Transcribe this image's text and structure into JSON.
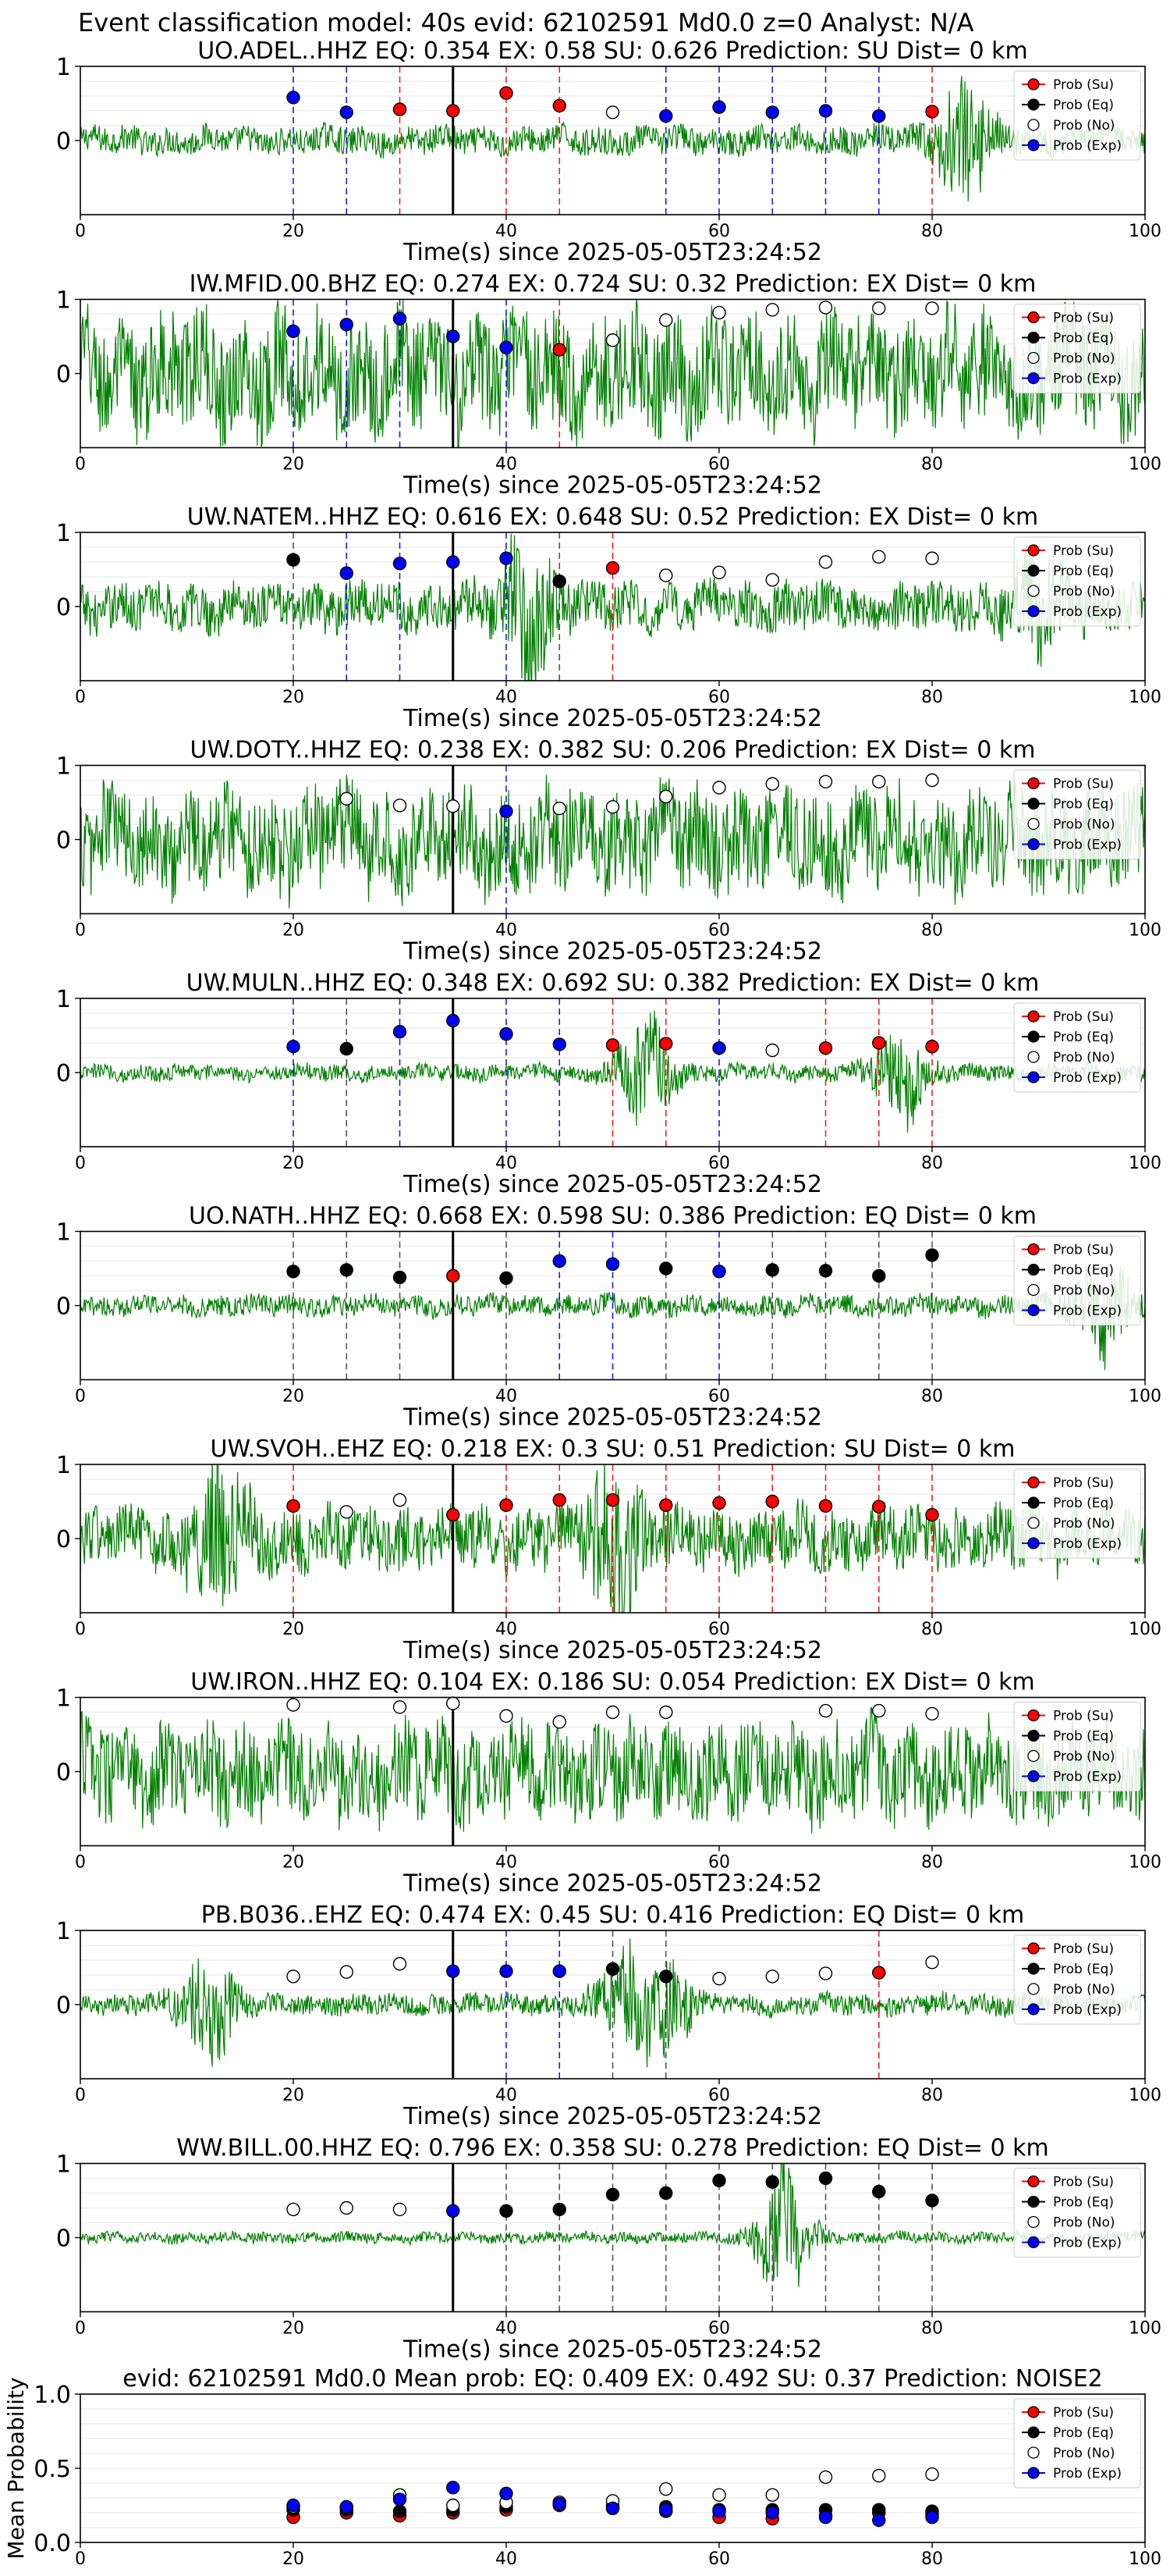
{
  "figure": {
    "suptitle": "Event classification model: 40s evid: 62102591 Md0.0 z=0 Analyst: N/A"
  },
  "legend_labels": [
    "Prob (Su)",
    "Prob (Eq)",
    "Prob (No)",
    "Prob (Exp)"
  ],
  "colors": {
    "su": "#ff0000",
    "eq": "#000000",
    "no": "#ffffff",
    "exp": "#0000ff",
    "waveform": "#008000"
  },
  "chart_data": [
    {
      "type": "scatter",
      "panel": 0,
      "title": "UO.ADEL..HHZ   EQ: 0.354  EX: 0.58  SU: 0.626   Prediction: SU    Dist= 0 km",
      "xlabel": "Time(s) since 2025-05-05T23:24:52",
      "xlim": [
        0,
        100
      ],
      "ylim": [
        -1,
        1
      ],
      "xticks": [
        0,
        20,
        40,
        60,
        80,
        100
      ],
      "yticks": [
        0,
        1
      ],
      "origin_time": 35,
      "amplitude": 0.2,
      "bursts": [
        [
          83,
          0.8
        ]
      ],
      "points": [
        {
          "x": 20,
          "y": 0.58,
          "cls": "exp"
        },
        {
          "x": 25,
          "y": 0.38,
          "cls": "exp"
        },
        {
          "x": 30,
          "y": 0.42,
          "cls": "su"
        },
        {
          "x": 35,
          "y": 0.4,
          "cls": "su"
        },
        {
          "x": 40,
          "y": 0.64,
          "cls": "su"
        },
        {
          "x": 45,
          "y": 0.47,
          "cls": "su"
        },
        {
          "x": 50,
          "y": 0.38,
          "cls": "no"
        },
        {
          "x": 55,
          "y": 0.33,
          "cls": "exp"
        },
        {
          "x": 60,
          "y": 0.45,
          "cls": "exp"
        },
        {
          "x": 65,
          "y": 0.38,
          "cls": "exp"
        },
        {
          "x": 70,
          "y": 0.4,
          "cls": "exp"
        },
        {
          "x": 75,
          "y": 0.33,
          "cls": "exp"
        },
        {
          "x": 80,
          "y": 0.39,
          "cls": "su"
        }
      ]
    },
    {
      "type": "scatter",
      "panel": 1,
      "title": "IW.MFID.00.BHZ   EQ: 0.274  EX: 0.724  SU: 0.32   Prediction: EX    Dist= 0 km",
      "xlabel": "Time(s) since 2025-05-05T23:24:52",
      "xlim": [
        0,
        100
      ],
      "ylim": [
        -1,
        1
      ],
      "xticks": [
        0,
        20,
        40,
        60,
        80,
        100
      ],
      "yticks": [
        0,
        1
      ],
      "origin_time": 35,
      "amplitude": 0.85,
      "bursts": [],
      "points": [
        {
          "x": 20,
          "y": 0.57,
          "cls": "exp"
        },
        {
          "x": 25,
          "y": 0.66,
          "cls": "exp"
        },
        {
          "x": 30,
          "y": 0.74,
          "cls": "exp"
        },
        {
          "x": 35,
          "y": 0.5,
          "cls": "exp"
        },
        {
          "x": 40,
          "y": 0.35,
          "cls": "exp"
        },
        {
          "x": 45,
          "y": 0.32,
          "cls": "su"
        },
        {
          "x": 50,
          "y": 0.45,
          "cls": "no"
        },
        {
          "x": 55,
          "y": 0.72,
          "cls": "no"
        },
        {
          "x": 60,
          "y": 0.82,
          "cls": "no"
        },
        {
          "x": 65,
          "y": 0.86,
          "cls": "no"
        },
        {
          "x": 70,
          "y": 0.89,
          "cls": "no"
        },
        {
          "x": 75,
          "y": 0.88,
          "cls": "no"
        },
        {
          "x": 80,
          "y": 0.88,
          "cls": "no"
        }
      ]
    },
    {
      "type": "scatter",
      "panel": 2,
      "title": "UW.NATEM..HHZ   EQ: 0.616  EX: 0.648  SU: 0.52   Prediction: EX    Dist= 0 km",
      "xlabel": "Time(s) since 2025-05-05T23:24:52",
      "xlim": [
        0,
        100
      ],
      "ylim": [
        -1,
        1
      ],
      "xticks": [
        0,
        20,
        40,
        60,
        80,
        100
      ],
      "yticks": [
        0,
        1
      ],
      "origin_time": 35,
      "amplitude": 0.35,
      "bursts": [
        [
          42,
          0.9
        ],
        [
          90,
          0.5
        ]
      ],
      "points": [
        {
          "x": 20,
          "y": 0.63,
          "cls": "eq"
        },
        {
          "x": 25,
          "y": 0.45,
          "cls": "exp"
        },
        {
          "x": 30,
          "y": 0.58,
          "cls": "exp"
        },
        {
          "x": 35,
          "y": 0.6,
          "cls": "exp"
        },
        {
          "x": 40,
          "y": 0.65,
          "cls": "exp"
        },
        {
          "x": 45,
          "y": 0.34,
          "cls": "eq"
        },
        {
          "x": 50,
          "y": 0.52,
          "cls": "su"
        },
        {
          "x": 55,
          "y": 0.42,
          "cls": "no"
        },
        {
          "x": 60,
          "y": 0.46,
          "cls": "no"
        },
        {
          "x": 65,
          "y": 0.36,
          "cls": "no"
        },
        {
          "x": 70,
          "y": 0.6,
          "cls": "no"
        },
        {
          "x": 75,
          "y": 0.67,
          "cls": "no"
        },
        {
          "x": 80,
          "y": 0.65,
          "cls": "no"
        }
      ]
    },
    {
      "type": "scatter",
      "panel": 3,
      "title": "UW.DOTY..HHZ   EQ: 0.238  EX: 0.382  SU: 0.206   Prediction: EX    Dist= 0 km",
      "xlabel": "Time(s) since 2025-05-05T23:24:52",
      "xlim": [
        0,
        100
      ],
      "ylim": [
        -1,
        1
      ],
      "xticks": [
        0,
        20,
        40,
        60,
        80,
        100
      ],
      "yticks": [
        0,
        1
      ],
      "origin_time": 35,
      "amplitude": 0.75,
      "bursts": [],
      "points": [
        {
          "x": 25,
          "y": 0.55,
          "cls": "no"
        },
        {
          "x": 30,
          "y": 0.46,
          "cls": "no"
        },
        {
          "x": 35,
          "y": 0.45,
          "cls": "no"
        },
        {
          "x": 40,
          "y": 0.38,
          "cls": "exp"
        },
        {
          "x": 45,
          "y": 0.42,
          "cls": "no"
        },
        {
          "x": 50,
          "y": 0.44,
          "cls": "no"
        },
        {
          "x": 55,
          "y": 0.58,
          "cls": "no"
        },
        {
          "x": 60,
          "y": 0.7,
          "cls": "no"
        },
        {
          "x": 65,
          "y": 0.75,
          "cls": "no"
        },
        {
          "x": 70,
          "y": 0.78,
          "cls": "no"
        },
        {
          "x": 75,
          "y": 0.78,
          "cls": "no"
        },
        {
          "x": 80,
          "y": 0.8,
          "cls": "no"
        }
      ]
    },
    {
      "type": "scatter",
      "panel": 4,
      "title": "UW.MULN..HHZ   EQ: 0.348  EX: 0.692  SU: 0.382   Prediction: EX    Dist= 0 km",
      "xlabel": "Time(s) since 2025-05-05T23:24:52",
      "xlim": [
        0,
        100
      ],
      "ylim": [
        -1,
        1
      ],
      "xticks": [
        0,
        20,
        40,
        60,
        80,
        100
      ],
      "yticks": [
        0,
        1
      ],
      "origin_time": 35,
      "amplitude": 0.12,
      "bursts": [
        [
          53,
          0.7
        ],
        [
          77,
          0.6
        ]
      ],
      "points": [
        {
          "x": 20,
          "y": 0.35,
          "cls": "exp"
        },
        {
          "x": 25,
          "y": 0.32,
          "cls": "eq"
        },
        {
          "x": 30,
          "y": 0.55,
          "cls": "exp"
        },
        {
          "x": 35,
          "y": 0.7,
          "cls": "exp"
        },
        {
          "x": 40,
          "y": 0.52,
          "cls": "exp"
        },
        {
          "x": 45,
          "y": 0.38,
          "cls": "exp"
        },
        {
          "x": 50,
          "y": 0.37,
          "cls": "su"
        },
        {
          "x": 55,
          "y": 0.39,
          "cls": "su"
        },
        {
          "x": 60,
          "y": 0.33,
          "cls": "exp"
        },
        {
          "x": 65,
          "y": 0.3,
          "cls": "no"
        },
        {
          "x": 70,
          "y": 0.33,
          "cls": "su"
        },
        {
          "x": 75,
          "y": 0.4,
          "cls": "su"
        },
        {
          "x": 80,
          "y": 0.35,
          "cls": "su"
        }
      ]
    },
    {
      "type": "scatter",
      "panel": 5,
      "title": "UO.NATH..HHZ   EQ: 0.668  EX: 0.598  SU: 0.386   Prediction: EQ    Dist= 0 km",
      "xlabel": "Time(s) since 2025-05-05T23:24:52",
      "xlim": [
        0,
        100
      ],
      "ylim": [
        -1,
        1
      ],
      "xticks": [
        0,
        20,
        40,
        60,
        80,
        100
      ],
      "yticks": [
        0,
        1
      ],
      "origin_time": 35,
      "amplitude": 0.15,
      "bursts": [
        [
          96,
          0.6
        ]
      ],
      "points": [
        {
          "x": 20,
          "y": 0.46,
          "cls": "eq"
        },
        {
          "x": 25,
          "y": 0.48,
          "cls": "eq"
        },
        {
          "x": 30,
          "y": 0.38,
          "cls": "eq"
        },
        {
          "x": 35,
          "y": 0.4,
          "cls": "su"
        },
        {
          "x": 40,
          "y": 0.37,
          "cls": "eq"
        },
        {
          "x": 45,
          "y": 0.6,
          "cls": "exp"
        },
        {
          "x": 50,
          "y": 0.56,
          "cls": "exp"
        },
        {
          "x": 55,
          "y": 0.5,
          "cls": "eq"
        },
        {
          "x": 60,
          "y": 0.46,
          "cls": "exp"
        },
        {
          "x": 65,
          "y": 0.48,
          "cls": "eq"
        },
        {
          "x": 70,
          "y": 0.47,
          "cls": "eq"
        },
        {
          "x": 75,
          "y": 0.4,
          "cls": "eq"
        },
        {
          "x": 80,
          "y": 0.68,
          "cls": "eq"
        }
      ]
    },
    {
      "type": "scatter",
      "panel": 6,
      "title": "UW.SVOH..EHZ   EQ: 0.218  EX: 0.3  SU: 0.51   Prediction: SU    Dist= 0 km",
      "xlabel": "Time(s) since 2025-05-05T23:24:52",
      "xlim": [
        0,
        100
      ],
      "ylim": [
        -1,
        1
      ],
      "xticks": [
        0,
        20,
        40,
        60,
        80,
        100
      ],
      "yticks": [
        0,
        1
      ],
      "origin_time": 35,
      "amplitude": 0.45,
      "bursts": [
        [
          13,
          0.9
        ],
        [
          50,
          0.8
        ]
      ],
      "points": [
        {
          "x": 20,
          "y": 0.44,
          "cls": "su"
        },
        {
          "x": 25,
          "y": 0.36,
          "cls": "no"
        },
        {
          "x": 30,
          "y": 0.52,
          "cls": "no"
        },
        {
          "x": 35,
          "y": 0.32,
          "cls": "su"
        },
        {
          "x": 40,
          "y": 0.45,
          "cls": "su"
        },
        {
          "x": 45,
          "y": 0.52,
          "cls": "su"
        },
        {
          "x": 50,
          "y": 0.52,
          "cls": "su"
        },
        {
          "x": 55,
          "y": 0.45,
          "cls": "su"
        },
        {
          "x": 60,
          "y": 0.48,
          "cls": "su"
        },
        {
          "x": 65,
          "y": 0.5,
          "cls": "su"
        },
        {
          "x": 70,
          "y": 0.44,
          "cls": "su"
        },
        {
          "x": 75,
          "y": 0.43,
          "cls": "su"
        },
        {
          "x": 80,
          "y": 0.32,
          "cls": "su"
        }
      ]
    },
    {
      "type": "scatter",
      "panel": 7,
      "title": "UW.IRON..HHZ   EQ: 0.104  EX: 0.186  SU: 0.054   Prediction: EX    Dist= 0 km",
      "xlabel": "Time(s) since 2025-05-05T23:24:52",
      "xlim": [
        0,
        100
      ],
      "ylim": [
        -1,
        1
      ],
      "xticks": [
        0,
        20,
        40,
        60,
        80,
        100
      ],
      "yticks": [
        0,
        1
      ],
      "origin_time": 35,
      "amplitude": 0.7,
      "bursts": [],
      "points": [
        {
          "x": 20,
          "y": 0.9,
          "cls": "no"
        },
        {
          "x": 30,
          "y": 0.87,
          "cls": "no"
        },
        {
          "x": 35,
          "y": 0.92,
          "cls": "no"
        },
        {
          "x": 40,
          "y": 0.75,
          "cls": "no"
        },
        {
          "x": 45,
          "y": 0.67,
          "cls": "no"
        },
        {
          "x": 50,
          "y": 0.8,
          "cls": "no"
        },
        {
          "x": 55,
          "y": 0.8,
          "cls": "no"
        },
        {
          "x": 70,
          "y": 0.82,
          "cls": "no"
        },
        {
          "x": 75,
          "y": 0.82,
          "cls": "no"
        },
        {
          "x": 80,
          "y": 0.78,
          "cls": "no"
        }
      ]
    },
    {
      "type": "scatter",
      "panel": 8,
      "title": "PB.B036..EHZ   EQ: 0.474  EX: 0.45  SU: 0.416   Prediction: EQ    Dist= 0 km",
      "xlabel": "Time(s) since 2025-05-05T23:24:52",
      "xlim": [
        0,
        100
      ],
      "ylim": [
        -1,
        1
      ],
      "xticks": [
        0,
        20,
        40,
        60,
        80,
        100
      ],
      "yticks": [
        0,
        1
      ],
      "origin_time": 35,
      "amplitude": 0.15,
      "bursts": [
        [
          12,
          0.75
        ],
        [
          51,
          0.6
        ],
        [
          55,
          0.6
        ]
      ],
      "points": [
        {
          "x": 20,
          "y": 0.38,
          "cls": "no"
        },
        {
          "x": 25,
          "y": 0.44,
          "cls": "no"
        },
        {
          "x": 30,
          "y": 0.55,
          "cls": "no"
        },
        {
          "x": 35,
          "y": 0.45,
          "cls": "exp"
        },
        {
          "x": 40,
          "y": 0.45,
          "cls": "exp"
        },
        {
          "x": 45,
          "y": 0.45,
          "cls": "exp"
        },
        {
          "x": 50,
          "y": 0.48,
          "cls": "eq"
        },
        {
          "x": 55,
          "y": 0.38,
          "cls": "eq"
        },
        {
          "x": 60,
          "y": 0.35,
          "cls": "no"
        },
        {
          "x": 65,
          "y": 0.38,
          "cls": "no"
        },
        {
          "x": 70,
          "y": 0.42,
          "cls": "no"
        },
        {
          "x": 75,
          "y": 0.43,
          "cls": "su"
        },
        {
          "x": 80,
          "y": 0.57,
          "cls": "no"
        }
      ]
    },
    {
      "type": "scatter",
      "panel": 9,
      "title": "WW.BILL.00.HHZ   EQ: 0.796  EX: 0.358  SU: 0.278   Prediction: EQ    Dist= 0 km",
      "xlabel": "Time(s) since 2025-05-05T23:24:52",
      "xlim": [
        0,
        100
      ],
      "ylim": [
        -1,
        1
      ],
      "xticks": [
        0,
        20,
        40,
        60,
        80,
        100
      ],
      "yticks": [
        0,
        1
      ],
      "origin_time": 35,
      "amplitude": 0.08,
      "bursts": [
        [
          66,
          0.9
        ]
      ],
      "points": [
        {
          "x": 20,
          "y": 0.38,
          "cls": "no"
        },
        {
          "x": 25,
          "y": 0.4,
          "cls": "no"
        },
        {
          "x": 30,
          "y": 0.38,
          "cls": "no"
        },
        {
          "x": 35,
          "y": 0.36,
          "cls": "exp"
        },
        {
          "x": 40,
          "y": 0.36,
          "cls": "eq"
        },
        {
          "x": 45,
          "y": 0.38,
          "cls": "eq"
        },
        {
          "x": 50,
          "y": 0.58,
          "cls": "eq"
        },
        {
          "x": 55,
          "y": 0.6,
          "cls": "eq"
        },
        {
          "x": 60,
          "y": 0.77,
          "cls": "eq"
        },
        {
          "x": 65,
          "y": 0.75,
          "cls": "eq"
        },
        {
          "x": 70,
          "y": 0.8,
          "cls": "eq"
        },
        {
          "x": 75,
          "y": 0.62,
          "cls": "eq"
        },
        {
          "x": 80,
          "y": 0.5,
          "cls": "eq"
        }
      ]
    },
    {
      "type": "scatter",
      "panel": 10,
      "title": "evid: 62102591  Md0.0   Mean prob:   EQ: 0.409  EX: 0.492  SU: 0.37   Prediction: NOISE2",
      "ylabel": "Mean Probability",
      "xlim": [
        0,
        100
      ],
      "ylim": [
        0,
        1
      ],
      "xticks": [
        0,
        20,
        40,
        60,
        80,
        100
      ],
      "yticks": [
        0.0,
        0.5,
        1.0
      ],
      "series": [
        {
          "name": "Prob (Su)",
          "cls": "su",
          "x": [
            20,
            25,
            30,
            35,
            40,
            45,
            50,
            55,
            60,
            65,
            70,
            75,
            80
          ],
          "y": [
            0.17,
            0.2,
            0.18,
            0.2,
            0.22,
            0.25,
            0.23,
            0.21,
            0.17,
            0.16,
            0.18,
            0.2,
            0.19
          ]
        },
        {
          "name": "Prob (Eq)",
          "cls": "eq",
          "x": [
            20,
            25,
            30,
            35,
            40,
            45,
            50,
            55,
            60,
            65,
            70,
            75,
            80
          ],
          "y": [
            0.22,
            0.22,
            0.21,
            0.22,
            0.24,
            0.27,
            0.25,
            0.24,
            0.22,
            0.22,
            0.22,
            0.22,
            0.21
          ]
        },
        {
          "name": "Prob (No)",
          "cls": "no",
          "x": [
            20,
            25,
            30,
            35,
            40,
            45,
            50,
            55,
            60,
            65,
            70,
            75,
            80
          ],
          "y": [
            0.24,
            0.24,
            0.32,
            0.25,
            0.27,
            0.27,
            0.28,
            0.36,
            0.32,
            0.32,
            0.44,
            0.45,
            0.46
          ]
        },
        {
          "name": "Prob (Exp)",
          "cls": "exp",
          "x": [
            20,
            25,
            30,
            35,
            40,
            45,
            50,
            55,
            60,
            65,
            70,
            75,
            80
          ],
          "y": [
            0.25,
            0.24,
            0.29,
            0.37,
            0.33,
            0.26,
            0.23,
            0.22,
            0.21,
            0.2,
            0.17,
            0.15,
            0.17
          ]
        }
      ]
    }
  ]
}
